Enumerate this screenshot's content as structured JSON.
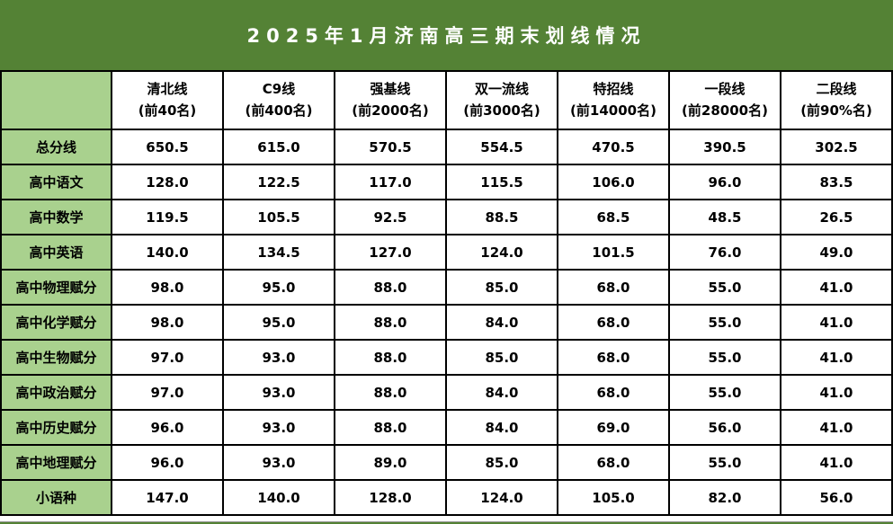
{
  "title": "2025年1月济南高三期末划线情况",
  "colors": {
    "banner_bg": "#548235",
    "row_label_bg": "#A9D18E",
    "cell_bg": "#FFFFFF",
    "border": "#000000",
    "title_text": "#FFFFFF",
    "cell_text": "#000000"
  },
  "chart_data": {
    "type": "table",
    "title": "2025年1月济南高三期末划线情况",
    "columns": [
      {
        "label": "清北线",
        "sub": "(前40名)"
      },
      {
        "label": "C9线",
        "sub": "(前400名)"
      },
      {
        "label": "强基线",
        "sub": "(前2000名)"
      },
      {
        "label": "双一流线",
        "sub": "(前3000名)"
      },
      {
        "label": "特招线",
        "sub": "(前14000名)"
      },
      {
        "label": "一段线",
        "sub": "(前28000名)"
      },
      {
        "label": "二段线",
        "sub": "(前90%名)"
      }
    ],
    "rows": [
      {
        "label": "总分线",
        "values": [
          "650.5",
          "615.0",
          "570.5",
          "554.5",
          "470.5",
          "390.5",
          "302.5"
        ]
      },
      {
        "label": "高中语文",
        "values": [
          "128.0",
          "122.5",
          "117.0",
          "115.5",
          "106.0",
          "96.0",
          "83.5"
        ]
      },
      {
        "label": "高中数学",
        "values": [
          "119.5",
          "105.5",
          "92.5",
          "88.5",
          "68.5",
          "48.5",
          "26.5"
        ]
      },
      {
        "label": "高中英语",
        "values": [
          "140.0",
          "134.5",
          "127.0",
          "124.0",
          "101.5",
          "76.0",
          "49.0"
        ]
      },
      {
        "label": "高中物理赋分",
        "values": [
          "98.0",
          "95.0",
          "88.0",
          "85.0",
          "68.0",
          "55.0",
          "41.0"
        ]
      },
      {
        "label": "高中化学赋分",
        "values": [
          "98.0",
          "95.0",
          "88.0",
          "84.0",
          "68.0",
          "55.0",
          "41.0"
        ]
      },
      {
        "label": "高中生物赋分",
        "values": [
          "97.0",
          "93.0",
          "88.0",
          "85.0",
          "68.0",
          "55.0",
          "41.0"
        ]
      },
      {
        "label": "高中政治赋分",
        "values": [
          "97.0",
          "93.0",
          "88.0",
          "84.0",
          "68.0",
          "55.0",
          "41.0"
        ]
      },
      {
        "label": "高中历史赋分",
        "values": [
          "96.0",
          "93.0",
          "88.0",
          "84.0",
          "69.0",
          "56.0",
          "41.0"
        ]
      },
      {
        "label": "高中地理赋分",
        "values": [
          "96.0",
          "93.0",
          "89.0",
          "85.0",
          "68.0",
          "55.0",
          "41.0"
        ]
      },
      {
        "label": "小语种",
        "values": [
          "147.0",
          "140.0",
          "128.0",
          "124.0",
          "105.0",
          "82.0",
          "56.0"
        ]
      }
    ]
  }
}
